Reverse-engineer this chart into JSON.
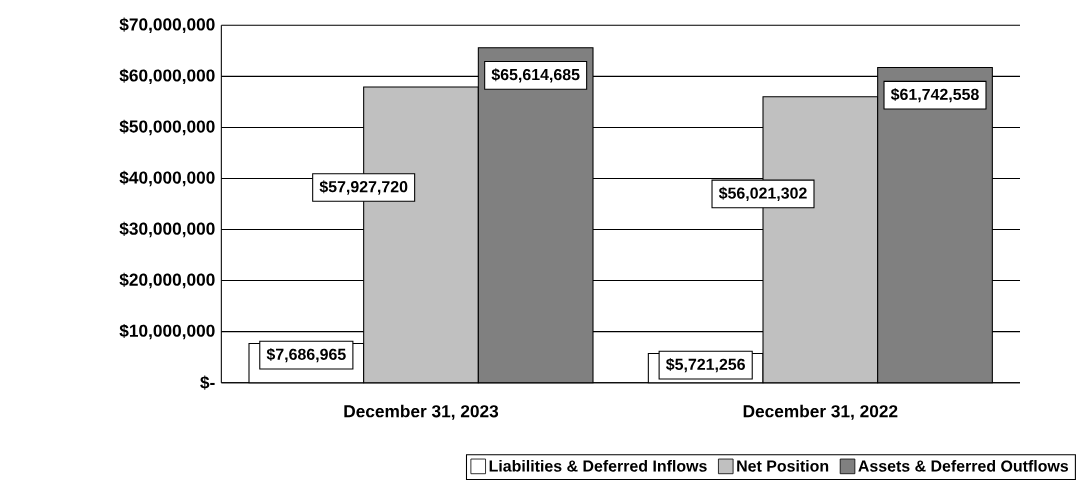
{
  "chart_data": {
    "type": "bar",
    "categories": [
      "December 31, 2023",
      "December 31, 2022"
    ],
    "series": [
      {
        "name": "Liabilities & Deferred Inflows",
        "color": "#ffffff",
        "values": [
          7686965,
          5721256
        ],
        "value_labels": [
          "$7,686,965",
          "$5,721,256"
        ]
      },
      {
        "name": "Net Position",
        "color": "#c0c0c0",
        "values": [
          57927720,
          56021302
        ],
        "value_labels": [
          "$57,927,720",
          "$56,021,302"
        ]
      },
      {
        "name": "Assets & Deferred Outflows",
        "color": "#808080",
        "values": [
          65614685,
          61742558
        ],
        "value_labels": [
          "$65,614,685",
          "$61,742,558"
        ]
      }
    ],
    "ylim": [
      0,
      70000000
    ],
    "yticks": [
      {
        "value": 0,
        "label": "$-"
      },
      {
        "value": 10000000,
        "label": "$10,000,000"
      },
      {
        "value": 20000000,
        "label": "$20,000,000"
      },
      {
        "value": 30000000,
        "label": "$30,000,000"
      },
      {
        "value": 40000000,
        "label": "$40,000,000"
      },
      {
        "value": 50000000,
        "label": "$50,000,000"
      },
      {
        "value": 60000000,
        "label": "$60,000,000"
      },
      {
        "value": 70000000,
        "label": "$70,000,000"
      }
    ],
    "grid": "y",
    "legend": "bottom"
  }
}
